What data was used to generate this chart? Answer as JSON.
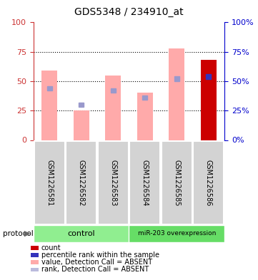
{
  "title": "GDS5348 / 234910_at",
  "samples": [
    "GSM1226581",
    "GSM1226582",
    "GSM1226583",
    "GSM1226584",
    "GSM1226585",
    "GSM1226586"
  ],
  "pink_bar_heights": [
    59,
    25,
    55,
    40,
    78,
    2
  ],
  "blue_dot_y": [
    44,
    30,
    42,
    36,
    52,
    52
  ],
  "red_bar_height": [
    0,
    0,
    0,
    0,
    0,
    68
  ],
  "blue_bar_height": [
    0,
    0,
    0,
    0,
    0,
    54
  ],
  "groups": [
    {
      "label": "control",
      "start": 0,
      "end": 3,
      "color": "#90ee90"
    },
    {
      "label": "miR-203 overexpression",
      "start": 3,
      "end": 6,
      "color": "#66dd66"
    }
  ],
  "protocol_label": "protocol",
  "ylim_left": [
    0,
    100
  ],
  "ylim_right": [
    0,
    100
  ],
  "yticks": [
    0,
    25,
    50,
    75,
    100
  ],
  "left_axis_color": "#cc3333",
  "right_axis_color": "#0000cc",
  "sample_box_color": "#d3d3d3",
  "pink_color": "#ffaaaa",
  "blue_dot_color": "#9999cc",
  "red_bar_color": "#cc0000",
  "blue_bar_color": "#3333bb",
  "legend_items": [
    {
      "color": "#cc0000",
      "label": "count"
    },
    {
      "color": "#3333bb",
      "label": "percentile rank within the sample"
    },
    {
      "color": "#ffaaaa",
      "label": "value, Detection Call = ABSENT"
    },
    {
      "color": "#bbbbdd",
      "label": "rank, Detection Call = ABSENT"
    }
  ],
  "figsize": [
    3.61,
    3.93
  ],
  "dpi": 100
}
